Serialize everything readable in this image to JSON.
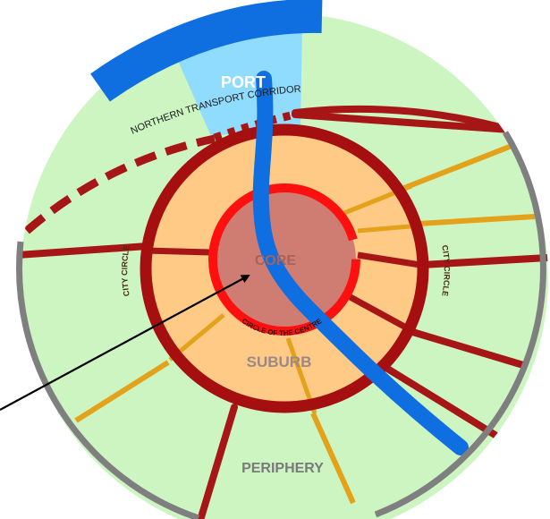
{
  "labels": {
    "port": "PORT",
    "corridor": "NORTHERN TRANSPORT CORRIDOR",
    "city_circle": "CITY CIRCLE",
    "core": "CORE",
    "circle_of_centre": "CIRCLE OF THE CENTRE",
    "suburb": "SUBURB",
    "periphery": "PERIPHERY"
  },
  "colors": {
    "periphery": "#ccf5c2",
    "suburb": "#ffc986",
    "core": "#cf7d72",
    "city_circle": "#a50f0f",
    "road": "#a61616",
    "circle_of_centre": "#ff1010",
    "secondary_road": "#e3a21a",
    "river": "#0f6fe0",
    "port_water": "#8fdcff",
    "boundary": "#7f7f7f",
    "arrow": "#000000"
  }
}
